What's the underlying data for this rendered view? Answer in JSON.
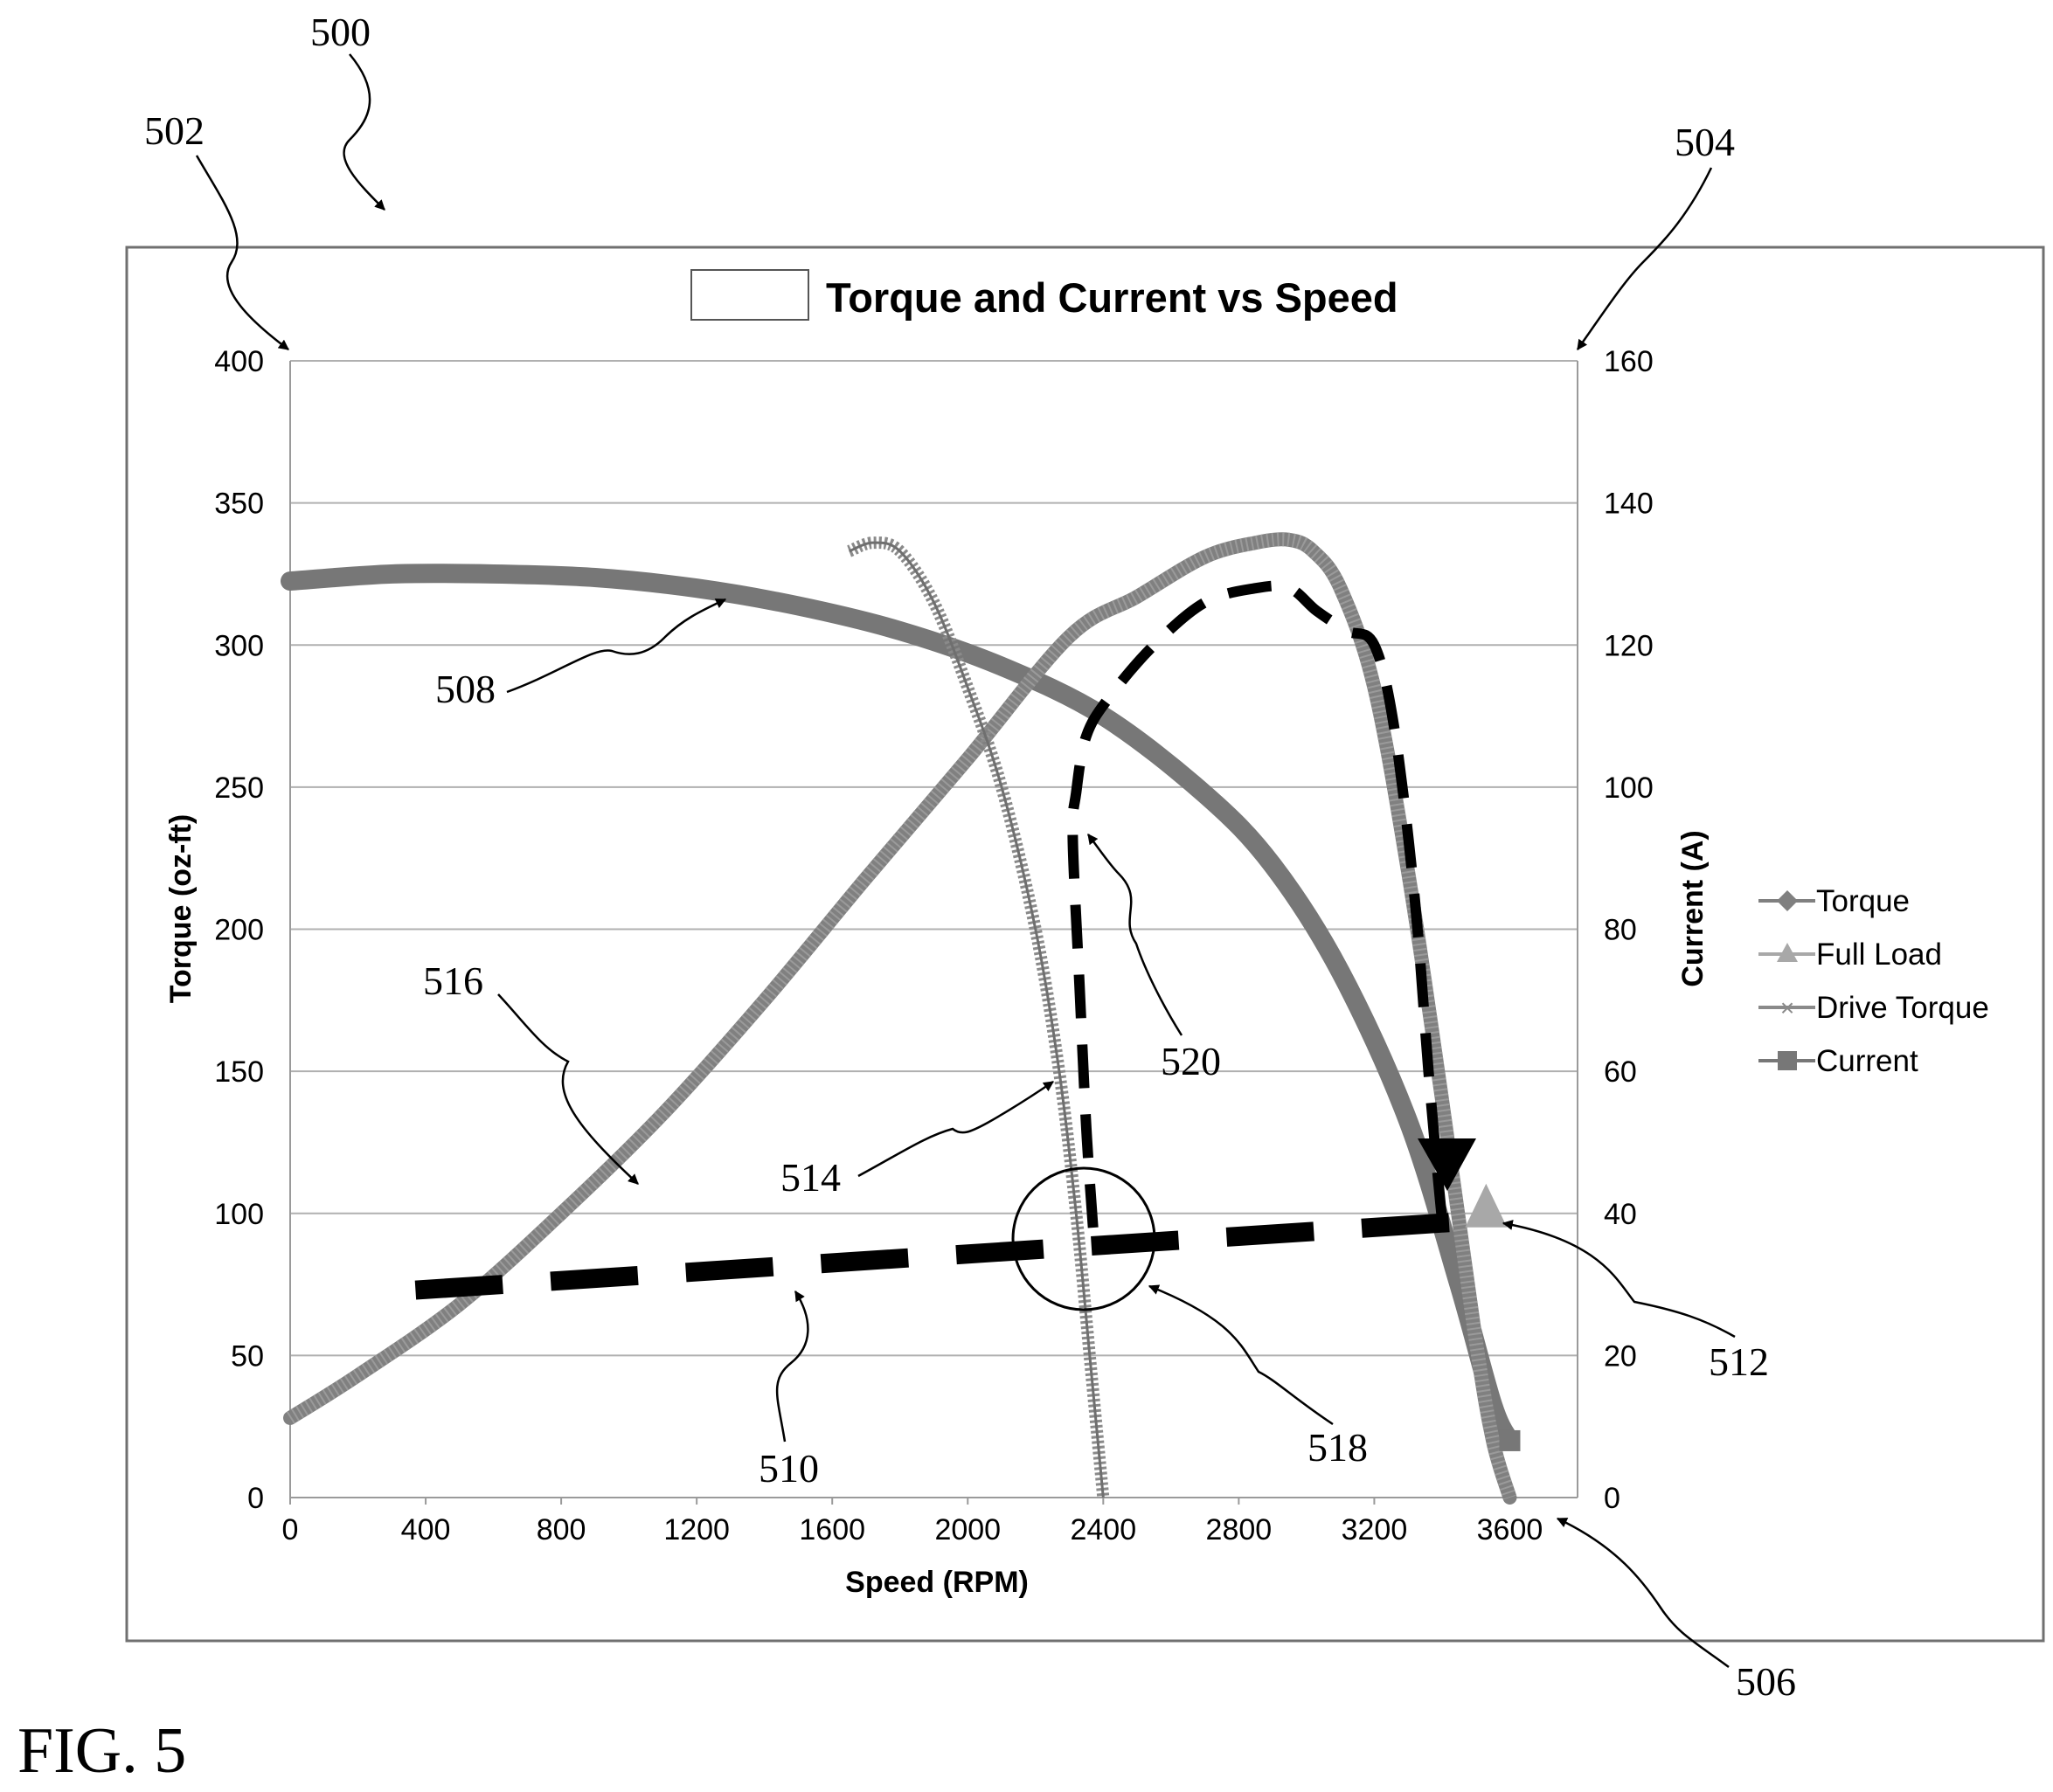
{
  "figure_label": "FIG. 5",
  "reference_numerals": {
    "figure": "500",
    "left_axis": "502",
    "right_axis": "504",
    "x_axis": "506",
    "current_curve": "508",
    "torque_curve": "516",
    "drive_torque_curve": "514",
    "load_line": "510",
    "full_load_point": "512",
    "operating_point_circle": "518",
    "transition_path": "520"
  },
  "chart_data": {
    "type": "line",
    "title": "Torque and Current vs Speed",
    "xlabel": "Speed (RPM)",
    "ylabel_left": "Torque (oz-ft)",
    "ylabel_right": "Current (A)",
    "xlim": [
      0,
      3800
    ],
    "ylim_left": [
      0,
      400
    ],
    "ylim_right": [
      0,
      160
    ],
    "x_ticks": [
      "0",
      "400",
      "800",
      "1200",
      "1600",
      "2000",
      "2400",
      "2800",
      "3200",
      "3600"
    ],
    "y_left_ticks": [
      "0",
      "50",
      "100",
      "150",
      "200",
      "250",
      "300",
      "350",
      "400"
    ],
    "y_right_ticks": [
      "0",
      "20",
      "40",
      "60",
      "80",
      "100",
      "120",
      "140",
      "160"
    ],
    "grid": "horizontal",
    "legend_position": "right",
    "series": [
      {
        "name": "Torque",
        "axis": "left",
        "color": "#808080",
        "x": [
          0,
          200,
          500,
          800,
          1100,
          1400,
          1700,
          2000,
          2300,
          2500,
          2700,
          2850,
          2950,
          3020,
          3100,
          3200,
          3300,
          3400,
          3500,
          3550,
          3600
        ],
        "y": [
          28,
          43,
          68,
          100,
          135,
          175,
          218,
          260,
          303,
          317,
          331,
          336,
          337,
          333,
          320,
          285,
          220,
          140,
          55,
          20,
          0
        ]
      },
      {
        "name": "Full Load",
        "axis": "left",
        "color": "#a8a8a8",
        "x": [
          3530
        ],
        "y": [
          100
        ]
      },
      {
        "name": "Drive Torque",
        "axis": "left",
        "color": "#8a8a8a",
        "x": [
          1650,
          1720,
          1800,
          1900,
          2000,
          2100,
          2200,
          2270,
          2320,
          2360,
          2400
        ],
        "y": [
          333,
          336,
          333,
          315,
          285,
          250,
          200,
          150,
          100,
          50,
          0
        ]
      },
      {
        "name": "Current",
        "axis": "right",
        "color": "#777777",
        "x": [
          0,
          300,
          600,
          900,
          1200,
          1500,
          1800,
          2100,
          2400,
          2700,
          2900,
          3100,
          3300,
          3450,
          3550,
          3600
        ],
        "y": [
          129,
          130,
          130,
          129.5,
          128,
          125.5,
          122,
          117,
          110,
          99,
          89,
          74,
          53,
          30,
          13,
          8
        ]
      },
      {
        "name": "Load Line",
        "axis": "left",
        "color": "#000000",
        "x": [
          370,
          3450
        ],
        "y": [
          73,
          97
        ]
      },
      {
        "name": "Transition Path",
        "axis": "left",
        "color": "#000000",
        "x": [
          2370,
          2350,
          2330,
          2310,
          2320,
          2350,
          2420,
          2550,
          2700,
          2850,
          2950,
          3030,
          3120,
          3200,
          3260,
          3320,
          3360,
          3390,
          3405
        ],
        "y": [
          95,
          130,
          180,
          232,
          248,
          268,
          282,
          300,
          315,
          320,
          320,
          312,
          305,
          300,
          270,
          210,
          150,
          110,
          92
        ]
      }
    ]
  }
}
